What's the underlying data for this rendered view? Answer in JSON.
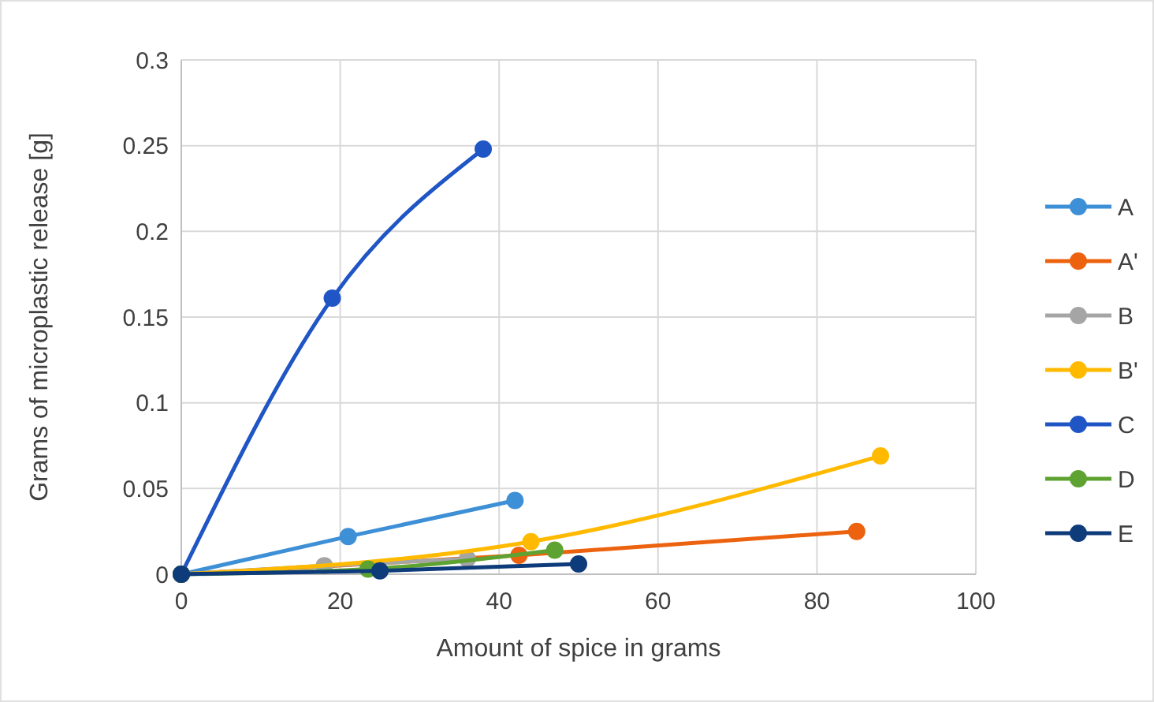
{
  "chart_data": {
    "type": "line",
    "xlabel": "Amount of spice in grams",
    "ylabel": "Grams of microplastic release [g]",
    "xlim": [
      0,
      100
    ],
    "xticks": [
      0,
      20,
      40,
      60,
      80,
      100
    ],
    "ylim": [
      0,
      0.3
    ],
    "yticks": [
      0,
      0.05,
      0.1,
      0.15,
      0.2,
      0.25,
      0.3
    ],
    "grid": true,
    "legend": "right",
    "marker": "circle",
    "line_style": "solid",
    "series": [
      {
        "name": "A",
        "color": "#3d8fd6",
        "x": [
          0,
          21,
          42
        ],
        "values": [
          0,
          0.022,
          0.043
        ]
      },
      {
        "name": "A'",
        "color": "#ec620f",
        "x": [
          0,
          42.5,
          85
        ],
        "values": [
          0,
          0.011,
          0.025
        ]
      },
      {
        "name": "B",
        "color": "#a5a5a5",
        "x": [
          0,
          18,
          36
        ],
        "values": [
          0,
          0.005,
          0.009
        ]
      },
      {
        "name": "B'",
        "color": "#ffba00",
        "x": [
          0,
          44,
          88
        ],
        "values": [
          0,
          0.019,
          0.069
        ]
      },
      {
        "name": "C",
        "color": "#1f55c4",
        "x": [
          0,
          19,
          38
        ],
        "values": [
          0,
          0.161,
          0.248
        ]
      },
      {
        "name": "D",
        "color": "#5ea332",
        "x": [
          0,
          23.5,
          47
        ],
        "values": [
          0,
          0.003,
          0.014
        ]
      },
      {
        "name": "E",
        "color": "#0e3b7a",
        "x": [
          0,
          25,
          50
        ],
        "values": [
          0,
          0.002,
          0.006
        ]
      }
    ]
  }
}
